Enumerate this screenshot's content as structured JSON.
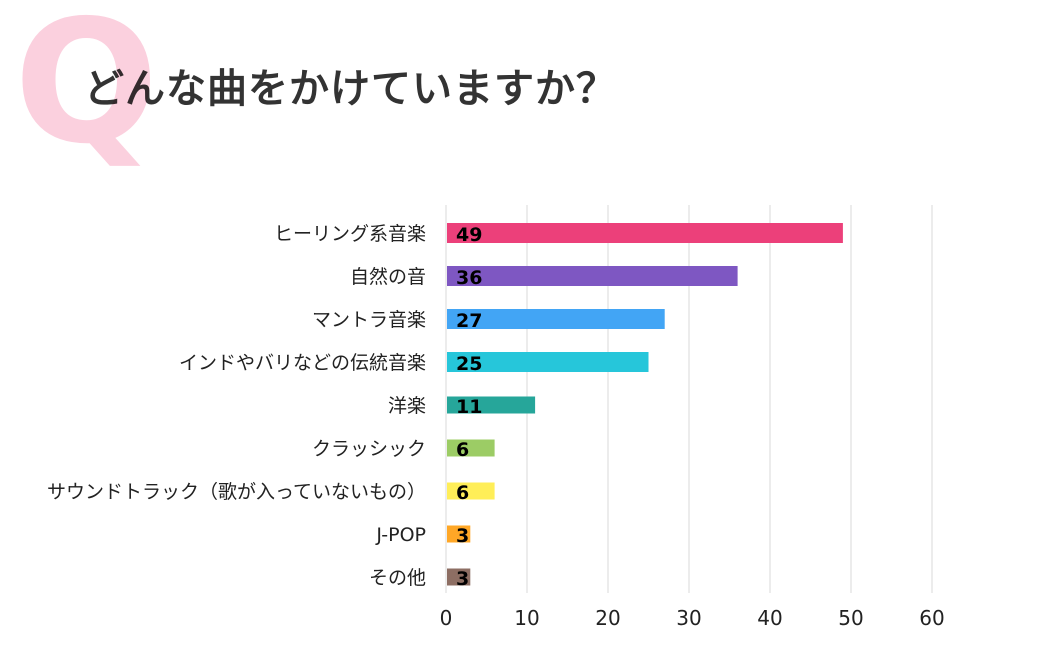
{
  "header": {
    "q_mark": "Q",
    "title": "どんな曲をかけていますか？"
  },
  "chart_data": {
    "type": "bar",
    "orientation": "horizontal",
    "title": "どんな曲をかけていますか？",
    "categories": [
      "ヒーリング系音楽",
      "自然の音",
      "マントラ音楽",
      "インドやバリなどの伝統音楽",
      "洋楽",
      "クラッシック",
      "サウンドトラック（歌が入っていないもの）",
      "J-POP",
      "その他"
    ],
    "values": [
      49,
      36,
      27,
      25,
      11,
      6,
      6,
      3,
      3
    ],
    "colors": [
      "#ec407a",
      "#7e57c2",
      "#42a5f5",
      "#26c6da",
      "#26a69a",
      "#9ccc65",
      "#ffee58",
      "#ffa726",
      "#8d6e63"
    ],
    "xlim": [
      0,
      60
    ],
    "xticks": [
      "0",
      "10",
      "20",
      "30",
      "40",
      "50",
      "60"
    ],
    "grid": true,
    "data_labels": true
  }
}
